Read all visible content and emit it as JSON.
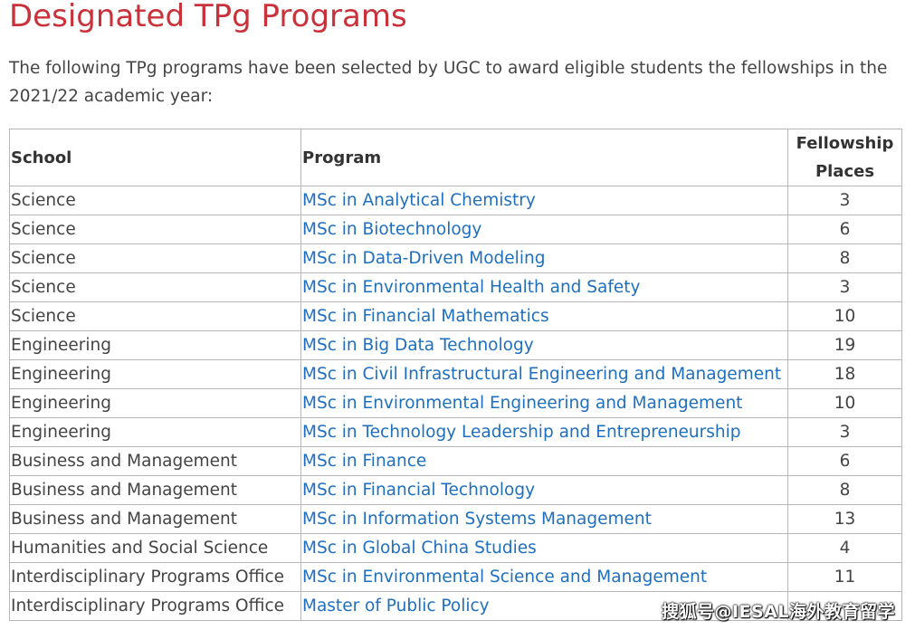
{
  "page": {
    "title": "Designated TPg Programs",
    "intro": "The following TPg programs have been selected by UGC to award eligible students the fellowships in the 2021/22 academic year:"
  },
  "colors": {
    "title": "#c9323a",
    "link": "#1f6fbf",
    "border": "#b7b7b7"
  },
  "table": {
    "headers": {
      "school": "School",
      "program": "Program",
      "places": "Fellowship Places"
    },
    "rows": [
      {
        "school": "Science",
        "program": "MSc in Analytical Chemistry",
        "places": "3"
      },
      {
        "school": "Science",
        "program": "MSc in Biotechnology",
        "places": "6"
      },
      {
        "school": "Science",
        "program": "MSc in Data-Driven Modeling",
        "places": "8"
      },
      {
        "school": "Science",
        "program": "MSc in Environmental Health and Safety",
        "places": "3"
      },
      {
        "school": "Science",
        "program": "MSc in Financial Mathematics",
        "places": "10"
      },
      {
        "school": "Engineering",
        "program": "MSc in Big Data Technology",
        "places": "19"
      },
      {
        "school": "Engineering",
        "program": "MSc in Civil Infrastructural Engineering and Management",
        "places": "18"
      },
      {
        "school": "Engineering",
        "program": "MSc in Environmental Engineering and Management",
        "places": "10"
      },
      {
        "school": "Engineering",
        "program": "MSc in Technology Leadership and Entrepreneurship",
        "places": "3"
      },
      {
        "school": "Business and Management",
        "program": "MSc in Finance",
        "places": "6"
      },
      {
        "school": "Business and Management",
        "program": "MSc in Financial Technology",
        "places": "8"
      },
      {
        "school": "Business and Management",
        "program": "MSc in Information Systems Management",
        "places": "13"
      },
      {
        "school": "Humanities and Social Science",
        "program": "MSc in Global China Studies",
        "places": "4"
      },
      {
        "school": "Interdisciplinary Programs Office",
        "program": "MSc in Environmental Science and Management",
        "places": "11"
      },
      {
        "school": "Interdisciplinary Programs Office",
        "program": "Master of Public Policy",
        "places": ""
      }
    ]
  },
  "watermark": "搜狐号@IESAL海外教育留学"
}
